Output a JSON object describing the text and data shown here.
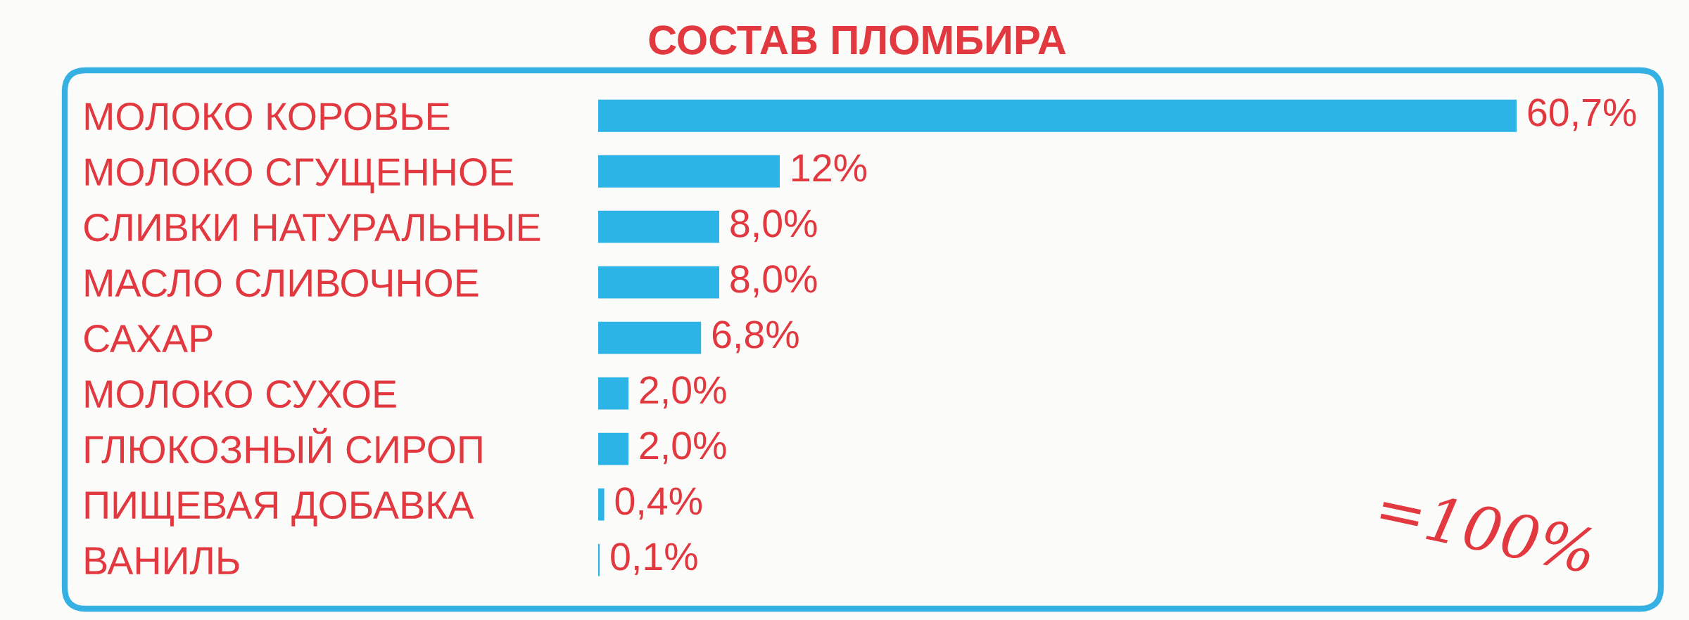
{
  "chart_data": {
    "type": "bar",
    "orientation": "horizontal",
    "title": "СОСТАВ ПЛОМБИРА",
    "categories": [
      "МОЛОКО КОРОВЬЕ",
      "МОЛОКО СГУЩЕННОЕ",
      "СЛИВКИ НАТУРАЛЬНЫЕ",
      "МАСЛО СЛИВОЧНОЕ",
      "САХАР",
      "МОЛОКО СУХОЕ",
      "ГЛЮКОЗНЫЙ СИРОП",
      "ПИЩЕВАЯ ДОБАВКА",
      "ВАНИЛЬ"
    ],
    "values": [
      60.7,
      12,
      8.0,
      8.0,
      6.8,
      2.0,
      2.0,
      0.4,
      0.1
    ],
    "value_labels": [
      "60,7%",
      "12%",
      "8,0%",
      "8,0%",
      "6,8%",
      "2,0%",
      "2,0%",
      "0,4%",
      "0,1%"
    ],
    "color": "#2db4e6",
    "annotations": [
      "=100%"
    ],
    "tick_labels": "y"
  }
}
